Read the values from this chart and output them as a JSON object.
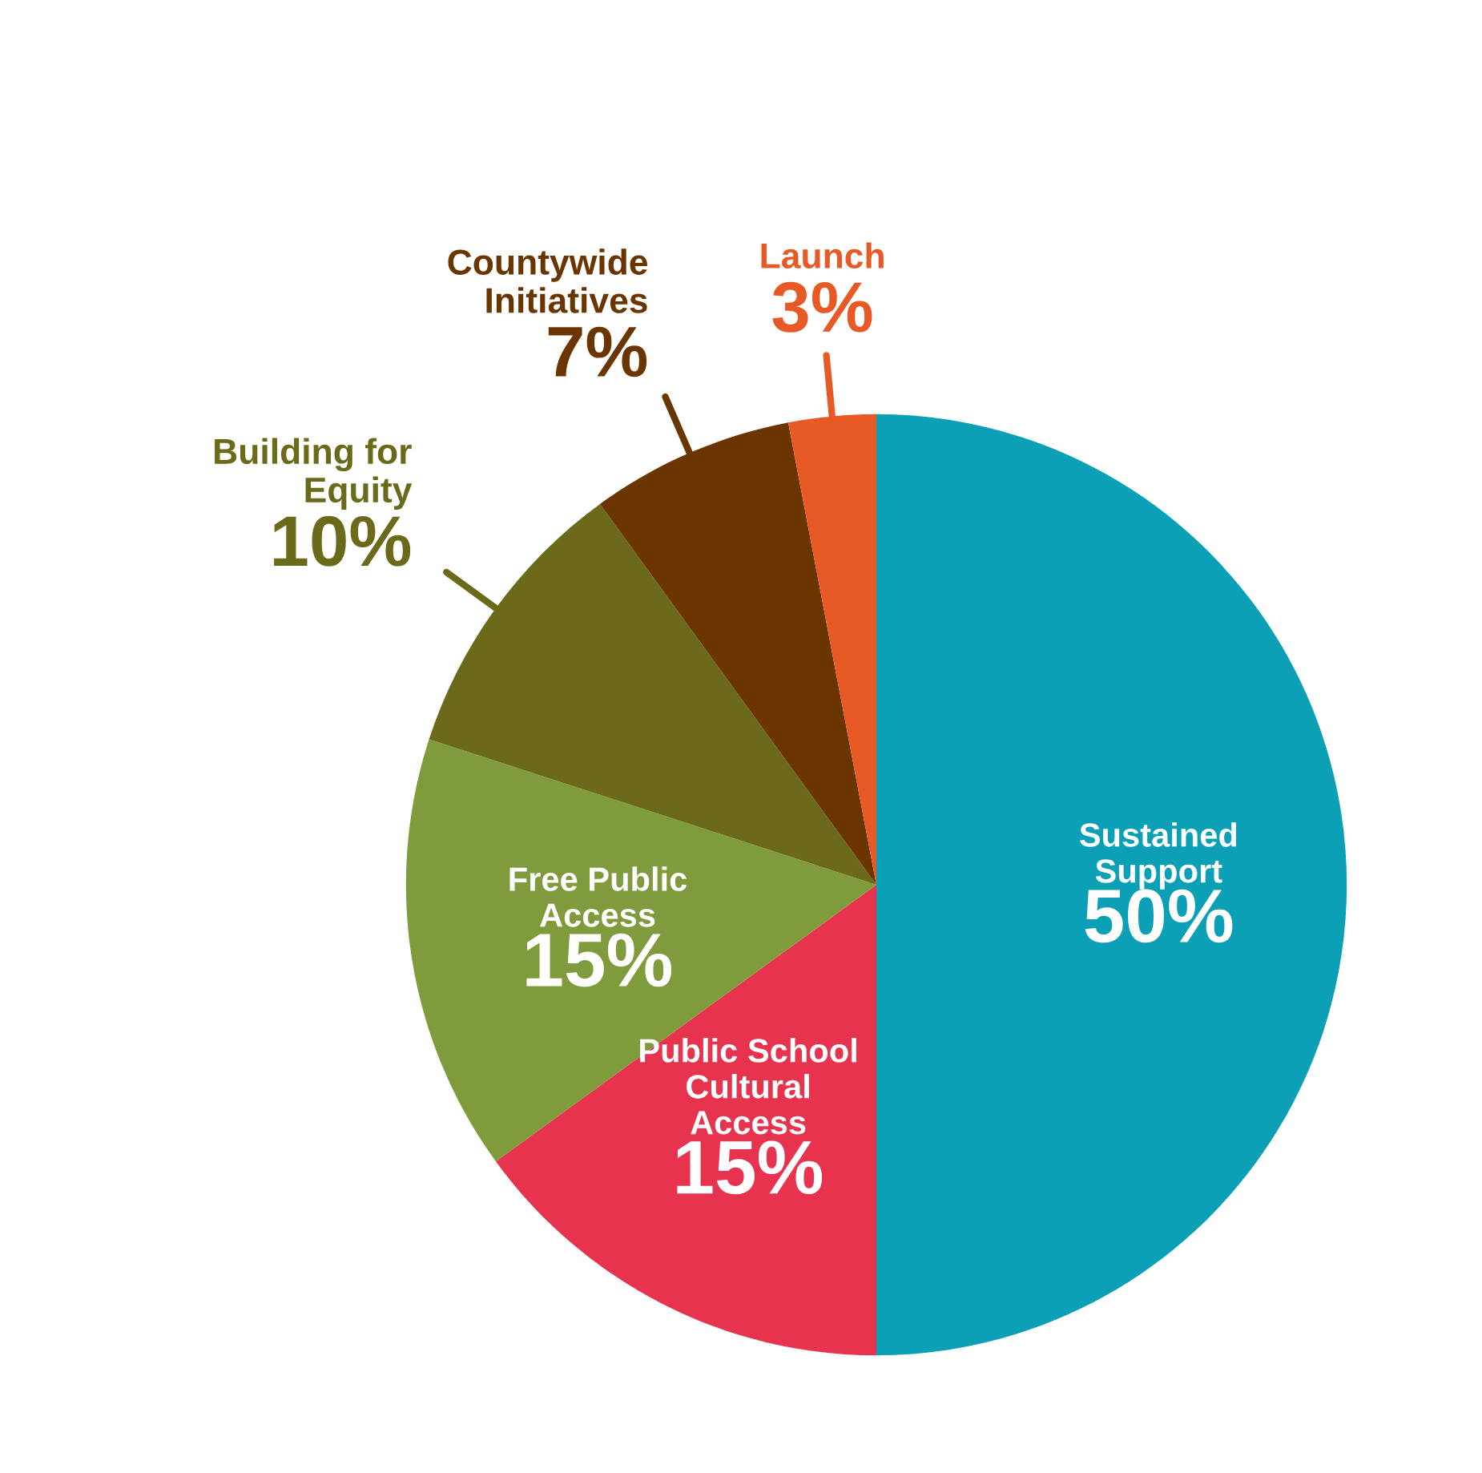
{
  "chart_data": {
    "type": "pie",
    "categories": [
      "Sustained\nSupport",
      "Public School\nCultural\nAccess",
      "Free Public\nAccess",
      "Building for\nEquity",
      "Countywide\nInitiatives",
      "Launch"
    ],
    "values": [
      50,
      15,
      15,
      10,
      7,
      3
    ],
    "value_labels": [
      "50%",
      "15%",
      "15%",
      "10%",
      "7%",
      "3%"
    ],
    "colors": [
      "#0ba0b5",
      "#e8334f",
      "#7f9b3c",
      "#6b6a1a",
      "#6b3500",
      "#e85a25"
    ]
  }
}
